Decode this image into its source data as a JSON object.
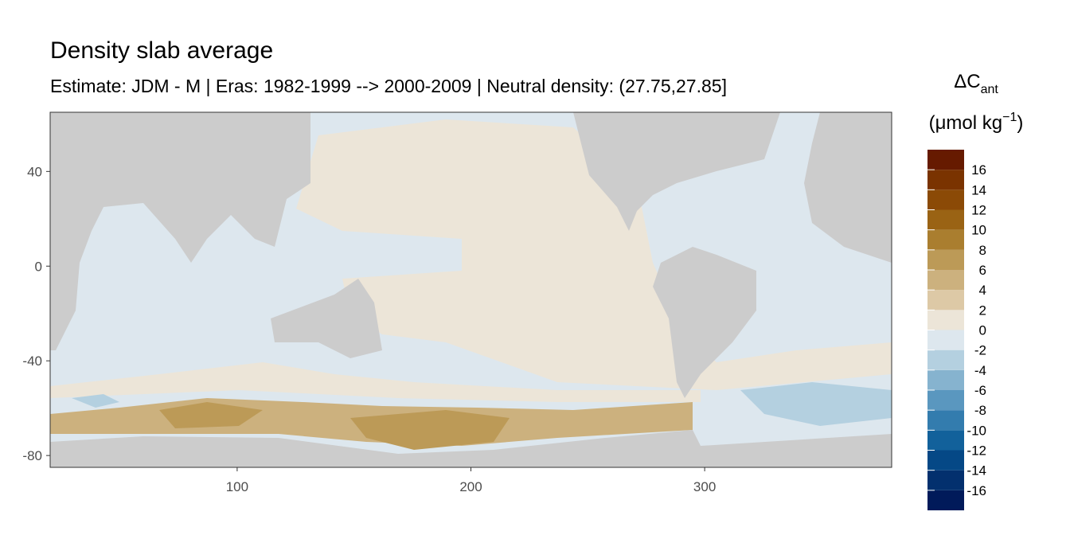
{
  "chart_data": {
    "type": "raster-map",
    "title": "Density slab average",
    "subtitle": "Estimate: JDM - M | Eras: 1982-1999 --> 2000-2009 | Neutral density: (27.75,27.85]",
    "xlim": [
      20,
      380
    ],
    "xticks": [
      100,
      200,
      300
    ],
    "ylim": [
      -85,
      65
    ],
    "yticks": [
      -80,
      -40,
      0,
      40
    ],
    "legend": {
      "title": {
        "main": "ΔC",
        "sub": "ant"
      },
      "unit": {
        "before": "(μmol kg",
        "sup": "−1",
        "after": ")"
      },
      "limits": [
        -18,
        18
      ],
      "ticks": [
        -16,
        -14,
        -12,
        -10,
        -8,
        -6,
        -4,
        -2,
        0,
        2,
        4,
        6,
        8,
        10,
        12,
        14,
        16
      ],
      "breaks": [
        -18,
        -16,
        -14,
        -12,
        -10,
        -8,
        -6,
        -4,
        -2,
        0,
        2,
        4,
        6,
        8,
        10,
        12,
        14,
        16,
        18
      ],
      "colors": [
        "#011a5a",
        "#03306e",
        "#054886",
        "#12619b",
        "#337cae",
        "#5a97bf",
        "#86b3cf",
        "#b4d0e0",
        "#dde7ee",
        "#ece5d8",
        "#ddc9a6",
        "#ccb17e",
        "#bc9a57",
        "#aa7e2f",
        "#9a6314",
        "#8b4a06",
        "#7a3300",
        "#661a00"
      ]
    }
  }
}
